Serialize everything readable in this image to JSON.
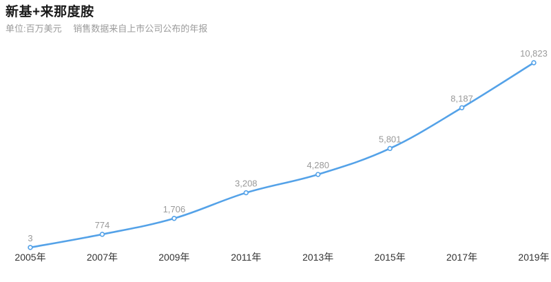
{
  "header": {
    "title": "新基+来那度胺",
    "subtitle": "单位:百万美元　 销售数据来自上市公司公布的年报"
  },
  "chart_data": {
    "type": "line",
    "title": "新基+来那度胺",
    "unit_note": "单位:百万美元",
    "source_note": "销售数据来自上市公司公布的年报",
    "categories": [
      "2005年",
      "2007年",
      "2009年",
      "2011年",
      "2013年",
      "2015年",
      "2017年",
      "2019年"
    ],
    "values": [
      3,
      774,
      1706,
      3208,
      4280,
      5801,
      8187,
      10823
    ],
    "data_labels": [
      "3",
      "774",
      "1,706",
      "3,208",
      "4,280",
      "5,801",
      "8,187",
      "10,823"
    ],
    "xlabel": "",
    "ylabel": "百万美元",
    "ylim": [
      0,
      10823
    ],
    "grid": false,
    "legend": false,
    "smooth": true,
    "colors": {
      "line": "#54a2e8",
      "point_fill": "#ffffff",
      "point_stroke": "#54a2e8",
      "data_label": "#999999",
      "axis_label": "#333333",
      "title": "#1a1a1a",
      "subtitle": "#9b9b9b"
    }
  }
}
